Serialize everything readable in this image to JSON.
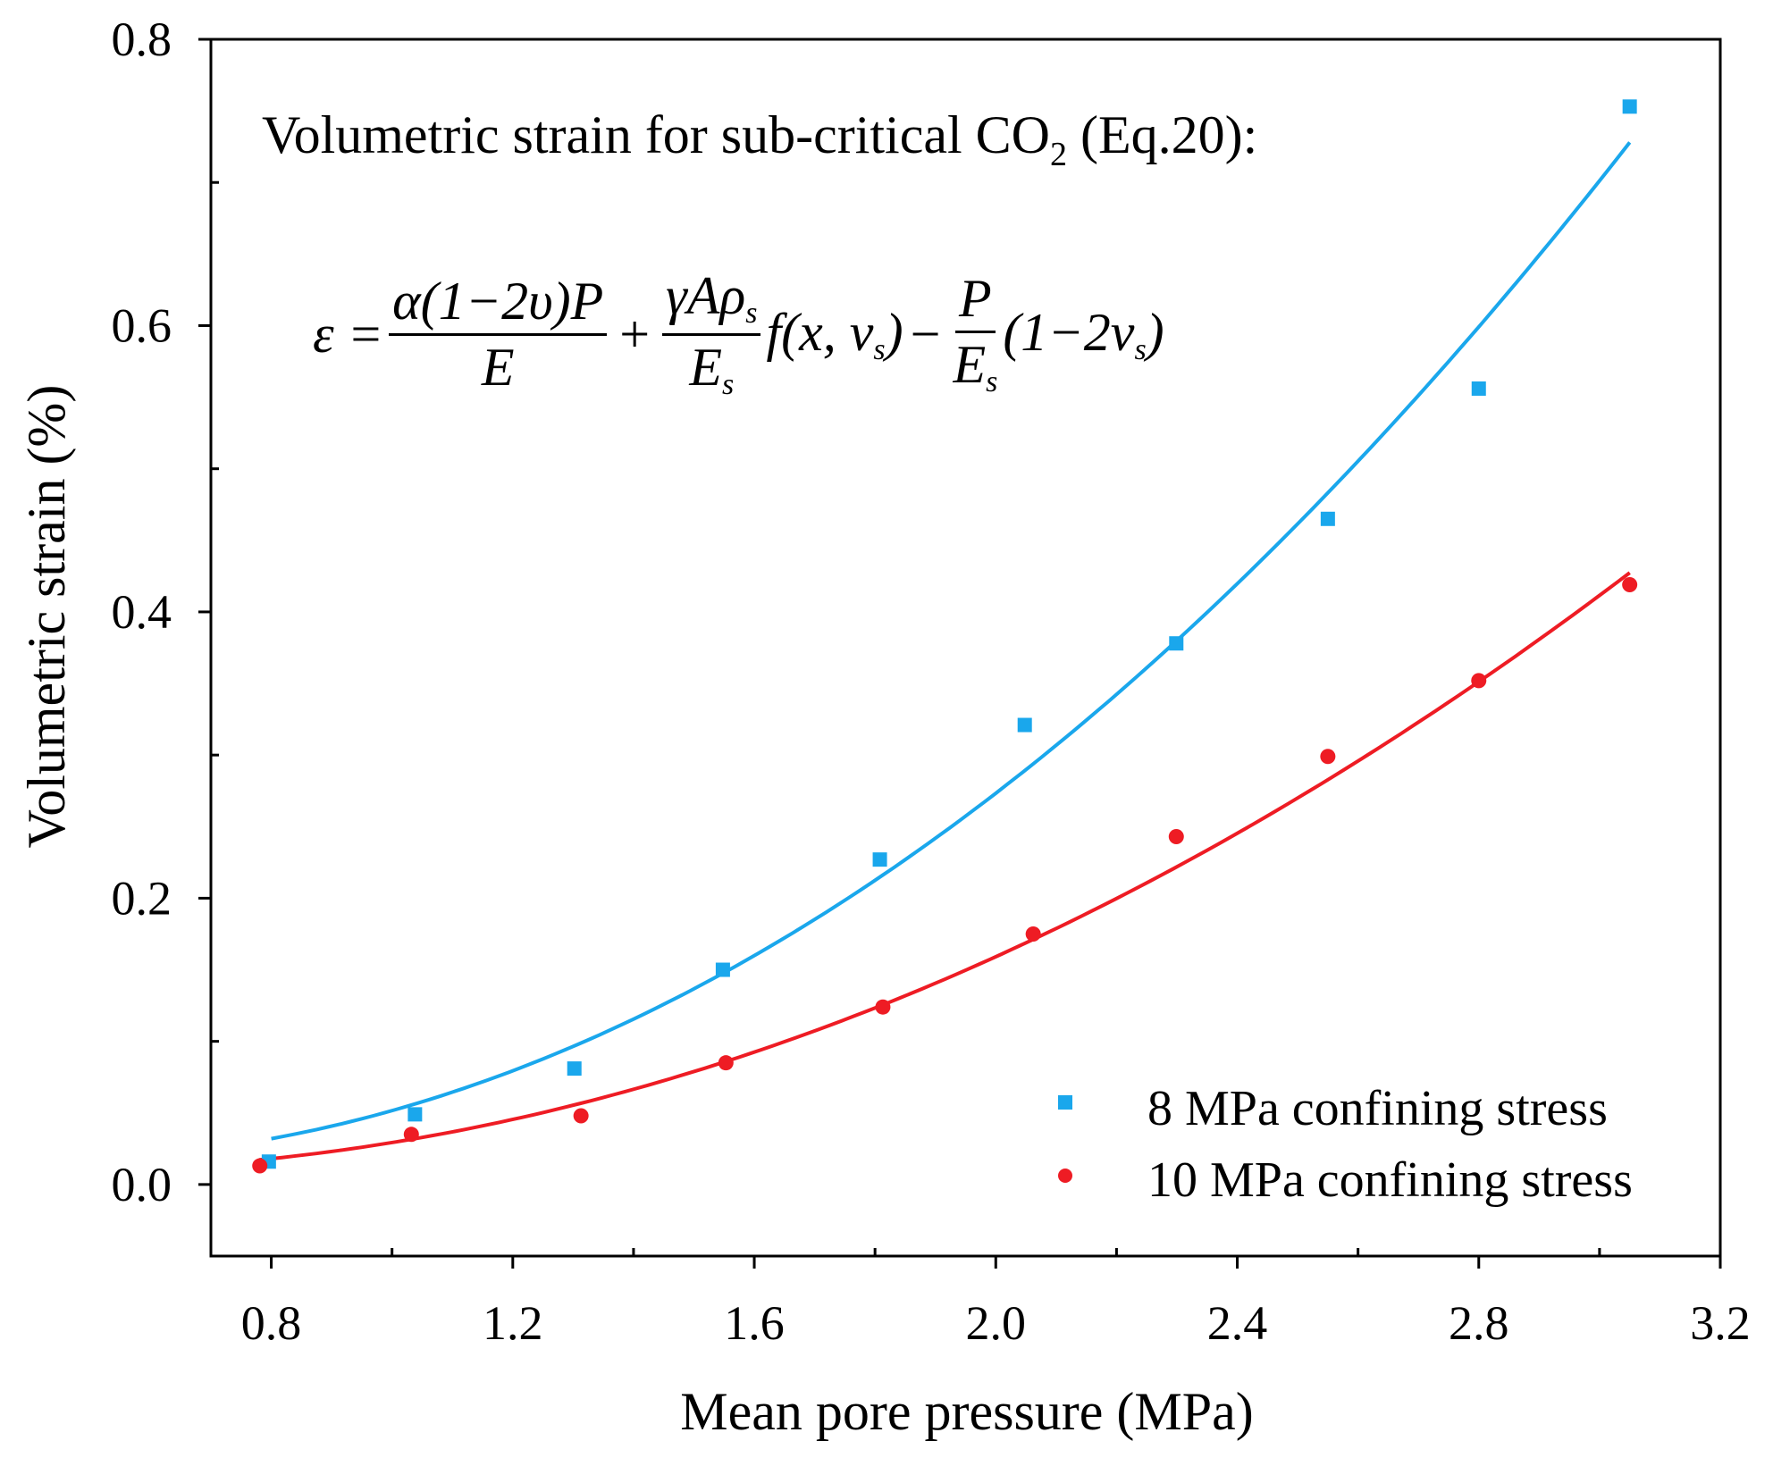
{
  "chart_data": {
    "type": "scatter",
    "title": "Volumetric strain for sub-critical CO",
    "title_subscript": "2",
    "title_suffix": " (Eq.20):",
    "equation": {
      "lhs": "ε =",
      "f1_num": "α(1−2υ)P",
      "f1_den": "E",
      "plus": "+",
      "f2_num": "γAρ",
      "f2_num_sub": "s",
      "f2_den": "E",
      "f2_den_sub": "s",
      "func": "f(x, v",
      "func_sub": "s",
      "func_close": ")",
      "minus": "−",
      "f3_num": "P",
      "f3_den": "E",
      "f3_den_sub": "s",
      "tail": "(1−2v",
      "tail_sub": "s",
      "tail_close": ")"
    },
    "xlabel": "Mean pore pressure (MPa)",
    "ylabel": "Volumetric strain (%)",
    "xlim": [
      0.7,
      3.2
    ],
    "ylim": [
      -0.05,
      0.8
    ],
    "xticks": [
      "0.8",
      "1.2",
      "1.6",
      "2.0",
      "2.4",
      "2.8",
      "3.2"
    ],
    "yticks": [
      "0.0",
      "0.2",
      "0.4",
      "0.6",
      "0.8"
    ],
    "grid": false,
    "legend_position": "bottom-right",
    "series": [
      {
        "name": "8 MPa confining stress",
        "marker": "square",
        "color": "#1aa7ec",
        "x": [
          0.796,
          1.038,
          1.302,
          1.548,
          1.808,
          2.048,
          2.299,
          2.55,
          2.8,
          3.05
        ],
        "y": [
          0.016,
          0.049,
          0.081,
          0.15,
          0.227,
          0.321,
          0.378,
          0.465,
          0.556,
          0.753
        ],
        "fit": {
          "type": "quadratic",
          "coef": [
            0.0361,
            -0.0876,
            0.1031
          ],
          "range": [
            0.8,
            3.05
          ]
        }
      },
      {
        "name": "10 MPa confining stress",
        "marker": "circle",
        "color": "#ee1c24",
        "x": [
          0.781,
          1.032,
          1.313,
          1.553,
          1.813,
          2.062,
          2.299,
          2.55,
          2.8,
          3.05
        ],
        "y": [
          0.013,
          0.035,
          0.048,
          0.085,
          0.124,
          0.175,
          0.243,
          0.299,
          0.352,
          0.419
        ],
        "fit": {
          "type": "quadratic",
          "coef": [
            0.0221,
            -0.0541,
            0.0613
          ],
          "range": [
            0.78,
            3.05
          ]
        }
      }
    ]
  }
}
